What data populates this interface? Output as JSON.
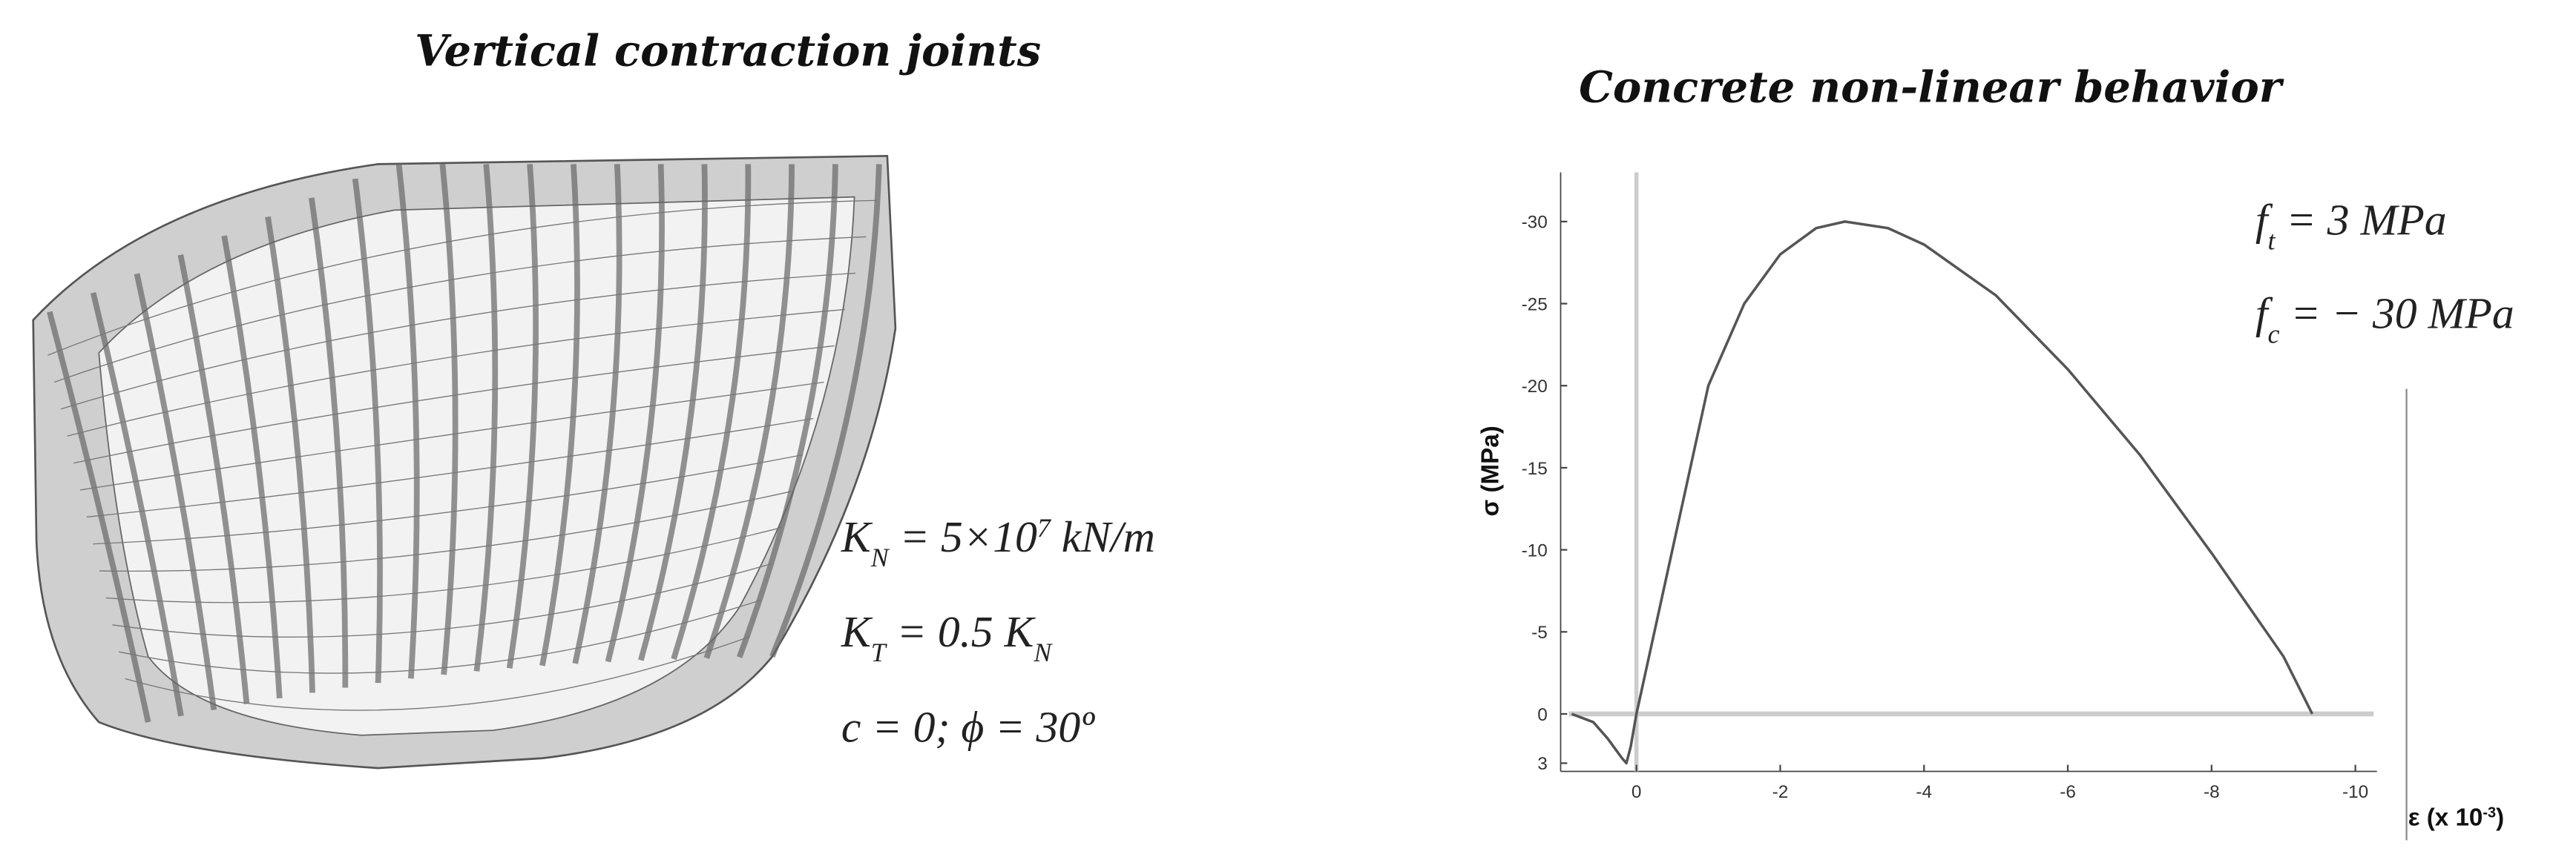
{
  "left": {
    "title": "Vertical contraction joints",
    "annotations": [
      {
        "parts": [
          {
            "text": "K"
          },
          {
            "text": "N",
            "sub": true
          },
          {
            "text": " = 5×10"
          },
          {
            "text": "7",
            "sup": true
          },
          {
            "text": " kN/m"
          }
        ]
      },
      {
        "parts": [
          {
            "text": "K"
          },
          {
            "text": "T",
            "sub": true
          },
          {
            "text": " = 0.5 K"
          },
          {
            "text": "N",
            "sub": true
          }
        ]
      },
      {
        "parts": [
          {
            "text": "c = 0; ϕ = 30º"
          }
        ]
      }
    ]
  },
  "chart_data": {
    "type": "line",
    "title": "Concrete non-linear behavior",
    "y_label": "σ (MPa)",
    "x_label": {
      "parts": [
        {
          "text": "ε (x 10"
        },
        {
          "text": "-3",
          "sup": true
        },
        {
          "text": ")"
        }
      ]
    },
    "annotations": [
      {
        "parts": [
          {
            "text": "f"
          },
          {
            "text": "t",
            "sub": true
          },
          {
            "text": " = 3 MPa"
          }
        ]
      },
      {
        "parts": [
          {
            "text": "f"
          },
          {
            "text": "c",
            "sub": true
          },
          {
            "text": " = − 30 MPa"
          }
        ]
      }
    ],
    "x": [
      0.9,
      0.6,
      0.4,
      0.2,
      0.14,
      0.08,
      0,
      -1,
      -1.5,
      -2,
      -2.5,
      -2.9,
      -3.5,
      -4,
      -5,
      -6,
      -7,
      -8,
      -9,
      -9.4
    ],
    "series": [
      {
        "color": "#555555",
        "values": [
          0,
          0.5,
          1.5,
          2.7,
          3,
          2,
          0,
          -20,
          -25,
          -28,
          -29.6,
          -30,
          -29.6,
          -28.6,
          -25.5,
          -21,
          -15.8,
          -9.8,
          -3.5,
          0
        ]
      }
    ],
    "xlim": [
      0.94,
      -10.3
    ],
    "ylim": [
      3.5,
      -33
    ],
    "xticks": [
      0,
      -2,
      -4,
      -6,
      -8,
      -10
    ],
    "yticks": [
      -30,
      -25,
      -20,
      -15,
      -10,
      -5,
      0,
      3
    ]
  }
}
